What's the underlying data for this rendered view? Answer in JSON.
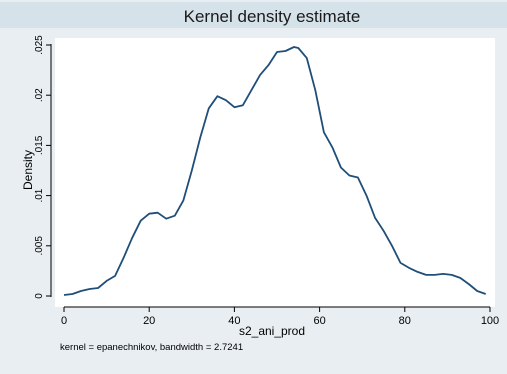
{
  "chart_data": {
    "type": "line",
    "title": "Kernel density estimate",
    "xlabel": "s2_ani_prod",
    "ylabel": "Density",
    "note": "kernel = epanechnikov, bandwidth = 2.7241",
    "xlim": [
      0,
      100
    ],
    "ylim": [
      0,
      0.025
    ],
    "x_ticks": [
      0,
      20,
      40,
      60,
      80,
      100
    ],
    "x_tick_labels": [
      "0",
      "20",
      "40",
      "60",
      "80",
      "100"
    ],
    "y_ticks": [
      0,
      0.005,
      0.01,
      0.015,
      0.02,
      0.025
    ],
    "y_tick_labels": [
      "0",
      ".005",
      ".01",
      ".015",
      ".02",
      ".025"
    ],
    "grid": false,
    "colors": {
      "background": "#e8eef2",
      "plot_area": "#ffffff",
      "title_band": "#d6e2ea",
      "line": "#1f4e79",
      "text": "#000000"
    },
    "series": [
      {
        "x": [
          0,
          2,
          4,
          6,
          8,
          10,
          12,
          14,
          16,
          18,
          20,
          22,
          24,
          26,
          28,
          30,
          32,
          34,
          36,
          38,
          40,
          42,
          44,
          46,
          48,
          50,
          52,
          54,
          55,
          57,
          59,
          61,
          63,
          65,
          67,
          69,
          71,
          73,
          75,
          77,
          79,
          81,
          83,
          85,
          87,
          89,
          91,
          93,
          95,
          97,
          99
        ],
        "y": [
          0.0001,
          0.0002,
          0.0005,
          0.0007,
          0.0008,
          0.0015,
          0.002,
          0.0038,
          0.0058,
          0.0075,
          0.0082,
          0.0083,
          0.0077,
          0.008,
          0.0095,
          0.0125,
          0.0158,
          0.0187,
          0.0199,
          0.0195,
          0.0188,
          0.019,
          0.0205,
          0.022,
          0.023,
          0.0243,
          0.0244,
          0.0248,
          0.0247,
          0.0237,
          0.0205,
          0.0163,
          0.0148,
          0.0128,
          0.012,
          0.0118,
          0.01,
          0.0078,
          0.0065,
          0.005,
          0.0033,
          0.0028,
          0.0024,
          0.0021,
          0.0021,
          0.0022,
          0.0021,
          0.0018,
          0.0012,
          0.0005,
          0.0002
        ]
      }
    ]
  }
}
